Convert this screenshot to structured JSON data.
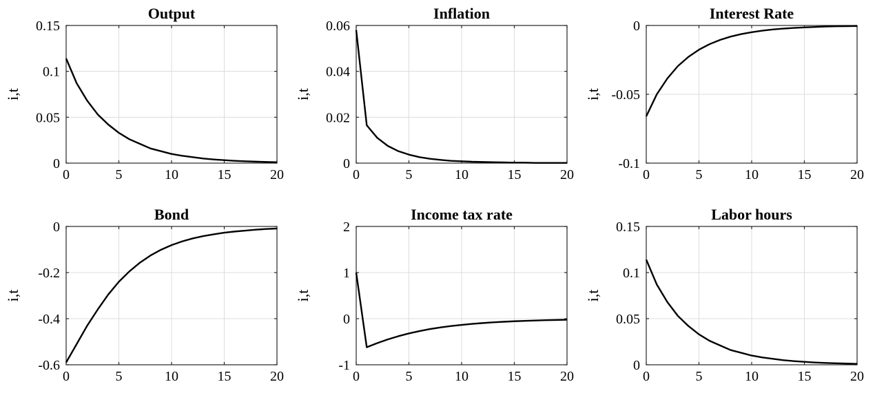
{
  "chart_data": [
    {
      "type": "line",
      "title": "Output",
      "ylabel": "i,t",
      "xlim": [
        0,
        20
      ],
      "ylim": [
        0,
        0.15
      ],
      "xticks": [
        0,
        5,
        10,
        15,
        20
      ],
      "xtick_labels": [
        "0",
        "5",
        "10",
        "15",
        "20"
      ],
      "yticks": [
        0,
        0.05,
        0.1,
        0.15
      ],
      "ytick_labels": [
        "0",
        "0.05",
        "0.1",
        "0.15"
      ],
      "grid": true,
      "x": [
        0,
        1,
        2,
        3,
        4,
        5,
        6,
        7,
        8,
        9,
        10,
        11,
        12,
        13,
        14,
        15,
        16,
        17,
        18,
        19,
        20
      ],
      "y": [
        0.114,
        0.087,
        0.068,
        0.053,
        0.042,
        0.033,
        0.026,
        0.021,
        0.016,
        0.013,
        0.01,
        0.008,
        0.0065,
        0.005,
        0.004,
        0.0032,
        0.0025,
        0.002,
        0.0016,
        0.0013,
        0.001
      ]
    },
    {
      "type": "line",
      "title": "Inflation",
      "ylabel": "i,t",
      "xlim": [
        0,
        20
      ],
      "ylim": [
        0,
        0.06
      ],
      "xticks": [
        0,
        5,
        10,
        15,
        20
      ],
      "xtick_labels": [
        "0",
        "5",
        "10",
        "15",
        "20"
      ],
      "yticks": [
        0,
        0.02,
        0.04,
        0.06
      ],
      "ytick_labels": [
        "0",
        "0.02",
        "0.04",
        "0.06"
      ],
      "grid": true,
      "x": [
        0,
        1,
        2,
        3,
        4,
        5,
        6,
        7,
        8,
        9,
        10,
        11,
        12,
        13,
        14,
        15,
        16,
        17,
        18,
        19,
        20
      ],
      "y": [
        0.058,
        0.0165,
        0.011,
        0.0075,
        0.0052,
        0.0037,
        0.0026,
        0.0019,
        0.0014,
        0.001,
        0.0008,
        0.0006,
        0.0005,
        0.0004,
        0.0003,
        0.0002,
        0.0002,
        0.0001,
        0.0001,
        0.0001,
        0.0001
      ]
    },
    {
      "type": "line",
      "title": "Interest Rate",
      "ylabel": "i,t",
      "xlim": [
        0,
        20
      ],
      "ylim": [
        -0.1,
        0
      ],
      "xticks": [
        0,
        5,
        10,
        15,
        20
      ],
      "xtick_labels": [
        "0",
        "5",
        "10",
        "15",
        "20"
      ],
      "yticks": [
        -0.1,
        -0.05,
        0
      ],
      "ytick_labels": [
        "-0.1",
        "-0.05",
        "0"
      ],
      "grid": true,
      "x": [
        0,
        1,
        2,
        3,
        4,
        5,
        6,
        7,
        8,
        9,
        10,
        11,
        12,
        13,
        14,
        15,
        16,
        17,
        18,
        19,
        20
      ],
      "y": [
        -0.066,
        -0.05,
        -0.0385,
        -0.0295,
        -0.0228,
        -0.0176,
        -0.0136,
        -0.0105,
        -0.0081,
        -0.0063,
        -0.0049,
        -0.0038,
        -0.0029,
        -0.0023,
        -0.0018,
        -0.0014,
        -0.0011,
        -0.0008,
        -0.0006,
        -0.0005,
        -0.0004
      ]
    },
    {
      "type": "line",
      "title": "Bond",
      "ylabel": "i,t",
      "xlim": [
        0,
        20
      ],
      "ylim": [
        -0.6,
        0
      ],
      "xticks": [
        0,
        5,
        10,
        15,
        20
      ],
      "xtick_labels": [
        "0",
        "5",
        "10",
        "15",
        "20"
      ],
      "yticks": [
        -0.6,
        -0.4,
        -0.2,
        0
      ],
      "ytick_labels": [
        "-0.6",
        "-0.4",
        "-0.2",
        "0"
      ],
      "grid": true,
      "x": [
        0,
        1,
        2,
        3,
        4,
        5,
        6,
        7,
        8,
        9,
        10,
        11,
        12,
        13,
        14,
        15,
        16,
        17,
        18,
        19,
        20
      ],
      "y": [
        -0.59,
        -0.51,
        -0.43,
        -0.36,
        -0.295,
        -0.24,
        -0.195,
        -0.157,
        -0.126,
        -0.101,
        -0.081,
        -0.065,
        -0.052,
        -0.042,
        -0.034,
        -0.027,
        -0.022,
        -0.018,
        -0.014,
        -0.011,
        -0.009
      ]
    },
    {
      "type": "line",
      "title": "Income tax rate",
      "ylabel": "i,t",
      "xlim": [
        0,
        20
      ],
      "ylim": [
        -1,
        2
      ],
      "xticks": [
        0,
        5,
        10,
        15,
        20
      ],
      "xtick_labels": [
        "0",
        "5",
        "10",
        "15",
        "20"
      ],
      "yticks": [
        -1,
        0,
        1,
        2
      ],
      "ytick_labels": [
        "-1",
        "0",
        "1",
        "2"
      ],
      "grid": true,
      "x": [
        0,
        1,
        2,
        3,
        4,
        5,
        6,
        7,
        8,
        9,
        10,
        11,
        12,
        13,
        14,
        15,
        16,
        17,
        18,
        19,
        20
      ],
      "y": [
        1.0,
        -0.62,
        -0.53,
        -0.45,
        -0.38,
        -0.32,
        -0.27,
        -0.225,
        -0.19,
        -0.16,
        -0.135,
        -0.113,
        -0.095,
        -0.08,
        -0.067,
        -0.056,
        -0.047,
        -0.04,
        -0.033,
        -0.028,
        -0.023
      ]
    },
    {
      "type": "line",
      "title": "Labor hours",
      "ylabel": "i,t",
      "xlim": [
        0,
        20
      ],
      "ylim": [
        0,
        0.15
      ],
      "xticks": [
        0,
        5,
        10,
        15,
        20
      ],
      "xtick_labels": [
        "0",
        "5",
        "10",
        "15",
        "20"
      ],
      "yticks": [
        0,
        0.05,
        0.1,
        0.15
      ],
      "ytick_labels": [
        "0",
        "0.05",
        "0.1",
        "0.15"
      ],
      "grid": true,
      "x": [
        0,
        1,
        2,
        3,
        4,
        5,
        6,
        7,
        8,
        9,
        10,
        11,
        12,
        13,
        14,
        15,
        16,
        17,
        18,
        19,
        20
      ],
      "y": [
        0.114,
        0.087,
        0.068,
        0.053,
        0.042,
        0.033,
        0.026,
        0.021,
        0.016,
        0.013,
        0.01,
        0.008,
        0.0065,
        0.005,
        0.004,
        0.0032,
        0.0025,
        0.002,
        0.0016,
        0.0013,
        0.001
      ]
    }
  ]
}
